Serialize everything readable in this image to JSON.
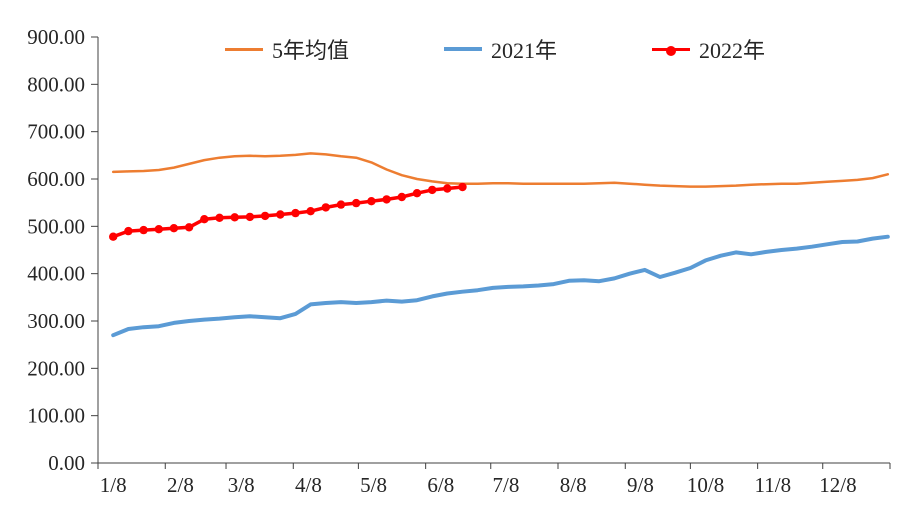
{
  "colors": {
    "background": "#ffffff",
    "axis": "#404040",
    "text": "#262626",
    "series_orange": "#ED7D31",
    "series_blue": "#5B9BD5",
    "series_red": "#FF0000"
  },
  "chart_data": {
    "type": "line",
    "title": "",
    "xlabel": "",
    "ylabel": "",
    "grid": false,
    "legend_position": "top",
    "ylim": [
      0,
      900
    ],
    "y_tick_step": 100,
    "y_tick_labels": [
      "0.00",
      "100.00",
      "200.00",
      "300.00",
      "400.00",
      "500.00",
      "600.00",
      "700.00",
      "800.00",
      "900.00"
    ],
    "x_unit": "day_of_year",
    "xlim": [
      1,
      366
    ],
    "x_tick_labels": [
      "1/8",
      "2/8",
      "3/8",
      "4/8",
      "5/8",
      "6/8",
      "7/8",
      "8/8",
      "9/8",
      "10/8",
      "11/8",
      "12/8"
    ],
    "x_tick_days": [
      8,
      39,
      67,
      98,
      128,
      159,
      189,
      220,
      251,
      281,
      312,
      342
    ],
    "x_axis_tick_days": [
      1,
      32,
      60,
      91,
      121,
      152,
      182,
      213,
      244,
      274,
      305,
      335,
      366
    ],
    "series": [
      {
        "name": "5年均值",
        "color": "#ED7D31",
        "marker": "none",
        "width": 2.5,
        "x": [
          8,
          15,
          22,
          29,
          36,
          43,
          50,
          57,
          64,
          71,
          78,
          85,
          92,
          99,
          106,
          113,
          120,
          127,
          134,
          141,
          148,
          155,
          162,
          169,
          176,
          183,
          190,
          197,
          204,
          211,
          218,
          225,
          232,
          239,
          246,
          253,
          260,
          267,
          274,
          281,
          288,
          295,
          302,
          309,
          316,
          323,
          330,
          337,
          344,
          351,
          358,
          365
        ],
        "values": [
          615,
          616,
          617,
          619,
          624,
          632,
          640,
          645,
          648,
          649,
          648,
          649,
          651,
          654,
          652,
          648,
          645,
          635,
          620,
          608,
          600,
          595,
          591,
          590,
          590,
          591,
          591,
          590,
          590,
          590,
          590,
          590,
          591,
          592,
          590,
          588,
          586,
          585,
          584,
          584,
          585,
          586,
          588,
          589,
          590,
          590,
          592,
          594,
          596,
          598,
          602,
          610
        ]
      },
      {
        "name": "2021年",
        "color": "#5B9BD5",
        "marker": "none",
        "width": 4,
        "x": [
          8,
          15,
          22,
          29,
          36,
          43,
          50,
          57,
          64,
          71,
          78,
          85,
          92,
          99,
          106,
          113,
          120,
          127,
          134,
          141,
          148,
          155,
          162,
          169,
          176,
          183,
          190,
          197,
          204,
          211,
          218,
          225,
          232,
          239,
          246,
          253,
          260,
          267,
          274,
          281,
          288,
          295,
          302,
          309,
          316,
          323,
          330,
          337,
          344,
          351,
          358,
          365
        ],
        "values": [
          270,
          283,
          287,
          289,
          296,
          300,
          303,
          305,
          308,
          310,
          308,
          306,
          315,
          335,
          338,
          340,
          338,
          340,
          343,
          341,
          344,
          352,
          358,
          362,
          365,
          370,
          372,
          373,
          375,
          378,
          385,
          386,
          384,
          390,
          400,
          408,
          393,
          402,
          412,
          428,
          438,
          445,
          441,
          446,
          450,
          453,
          457,
          462,
          467,
          468,
          474,
          478
        ]
      },
      {
        "name": "2022年",
        "color": "#FF0000",
        "marker": "circle",
        "width": 3.5,
        "x": [
          8,
          15,
          22,
          29,
          36,
          43,
          50,
          57,
          64,
          71,
          78,
          85,
          92,
          99,
          106,
          113,
          120,
          127,
          134,
          141,
          148,
          155,
          162,
          169
        ],
        "values": [
          478,
          490,
          492,
          494,
          496,
          498,
          515,
          518,
          519,
          520,
          522,
          525,
          528,
          532,
          540,
          546,
          549,
          553,
          557,
          562,
          570,
          577,
          580,
          583
        ]
      }
    ]
  }
}
